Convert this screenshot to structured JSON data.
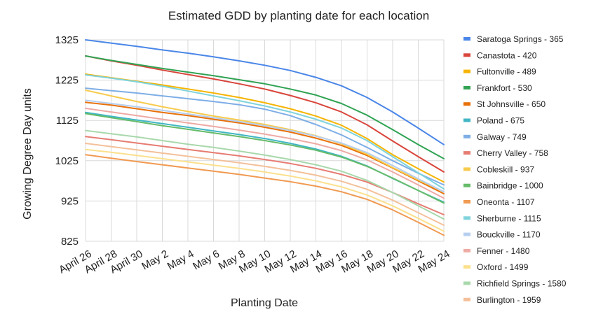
{
  "chart_data": {
    "type": "line",
    "title": "Estimated GDD by planting date for each location",
    "xlabel": "Planting Date",
    "ylabel": "Growing Degree Day units",
    "ylim": [
      825,
      1325
    ],
    "yticks": [
      "1325",
      "1225",
      "1125",
      "1025",
      "925",
      "825"
    ],
    "categories": [
      "April 26",
      "April 28",
      "April 30",
      "May 2",
      "May 4",
      "May 6",
      "May 8",
      "May 10",
      "May 12",
      "May 14",
      "May 16",
      "May 18",
      "May 20",
      "May 22",
      "May 24"
    ],
    "grid": true,
    "legend_position": "right",
    "series": [
      {
        "name": "Saratoga Springs - 365",
        "color": "#4a86e8",
        "values": [
          1325,
          1317,
          1309,
          1300,
          1292,
          1283,
          1273,
          1262,
          1249,
          1232,
          1211,
          1182,
          1146,
          1106,
          1065
        ]
      },
      {
        "name": "Canastota - 420",
        "color": "#d9463c",
        "values": [
          1285,
          1273,
          1262,
          1250,
          1239,
          1228,
          1216,
          1203,
          1187,
          1169,
          1146,
          1114,
          1074,
          1035,
          997
        ]
      },
      {
        "name": "Fultonville - 489",
        "color": "#f6b400",
        "values": [
          1240,
          1231,
          1222,
          1213,
          1203,
          1193,
          1182,
          1169,
          1154,
          1136,
          1113,
          1080,
          1040,
          1005,
          972
        ]
      },
      {
        "name": "Frankfort - 530",
        "color": "#31a354",
        "values": [
          1285,
          1274,
          1264,
          1254,
          1245,
          1236,
          1226,
          1216,
          1203,
          1188,
          1167,
          1138,
          1102,
          1065,
          1030
        ]
      },
      {
        "name": "St Johnsville - 650",
        "color": "#e8710a",
        "values": [
          1170,
          1163,
          1154,
          1145,
          1137,
          1128,
          1119,
          1108,
          1096,
          1081,
          1063,
          1038,
          1007,
          975,
          943
        ]
      },
      {
        "name": "Poland - 675",
        "color": "#41b6c4",
        "values": [
          1145,
          1135,
          1126,
          1117,
          1108,
          1099,
          1090,
          1080,
          1068,
          1054,
          1036,
          1012,
          981,
          951,
          922
        ]
      },
      {
        "name": "Galway - 749",
        "color": "#7eaee6",
        "values": [
          1205,
          1199,
          1193,
          1186,
          1179,
          1172,
          1164,
          1153,
          1137,
          1115,
          1089,
          1058,
          1025,
          994,
          965
        ]
      },
      {
        "name": "Cherry Valley - 758",
        "color": "#e67c73",
        "values": [
          1085,
          1077,
          1069,
          1061,
          1053,
          1045,
          1037,
          1028,
          1018,
          1006,
          991,
          972,
          946,
          918,
          891
        ]
      },
      {
        "name": "Cobleskill - 937",
        "color": "#f7cb4d",
        "values": [
          1200,
          1186,
          1172,
          1159,
          1147,
          1136,
          1126,
          1115,
          1102,
          1087,
          1067,
          1041,
          1008,
          977,
          948
        ]
      },
      {
        "name": "Bainbridge - 1000",
        "color": "#66bb6a",
        "values": [
          1142,
          1132,
          1122,
          1112,
          1103,
          1094,
          1085,
          1075,
          1064,
          1051,
          1034,
          1011,
          982,
          951,
          920
        ]
      },
      {
        "name": "Oneonta - 1107",
        "color": "#f09a52",
        "values": [
          1040,
          1031,
          1023,
          1015,
          1007,
          999,
          991,
          982,
          973,
          962,
          948,
          929,
          903,
          872,
          840
        ]
      },
      {
        "name": "Sherburne - 1115",
        "color": "#7fd3dc",
        "values": [
          1238,
          1230,
          1221,
          1210,
          1198,
          1186,
          1174,
          1161,
          1146,
          1128,
          1106,
          1075,
          1035,
          995,
          955
        ]
      },
      {
        "name": "Bouckville - 1170",
        "color": "#b6cff0",
        "values": [
          1175,
          1167,
          1159,
          1150,
          1141,
          1132,
          1122,
          1112,
          1100,
          1086,
          1069,
          1045,
          1013,
          980,
          948
        ]
      },
      {
        "name": "Fenner - 1480",
        "color": "#eeaaa5",
        "values": [
          1155,
          1146,
          1137,
          1128,
          1119,
          1110,
          1101,
          1091,
          1080,
          1067,
          1050,
          1027,
          997,
          965,
          932
        ]
      },
      {
        "name": "Oxford - 1499",
        "color": "#fbe08d",
        "values": [
          1053,
          1046,
          1038,
          1030,
          1022,
          1014,
          1006,
          997,
          987,
          975,
          960,
          940,
          913,
          882,
          850
        ]
      },
      {
        "name": "Richfield Springs - 1580",
        "color": "#a8d8ab",
        "values": [
          1100,
          1092,
          1084,
          1075,
          1066,
          1058,
          1049,
          1039,
          1028,
          1015,
          999,
          976,
          946,
          913,
          880
        ]
      },
      {
        "name": "Burlington - 1959",
        "color": "#f4c09a",
        "values": [
          1068,
          1060,
          1052,
          1044,
          1036,
          1028,
          1020,
          1011,
          1001,
          989,
          974,
          954,
          927,
          896,
          865
        ]
      }
    ]
  }
}
